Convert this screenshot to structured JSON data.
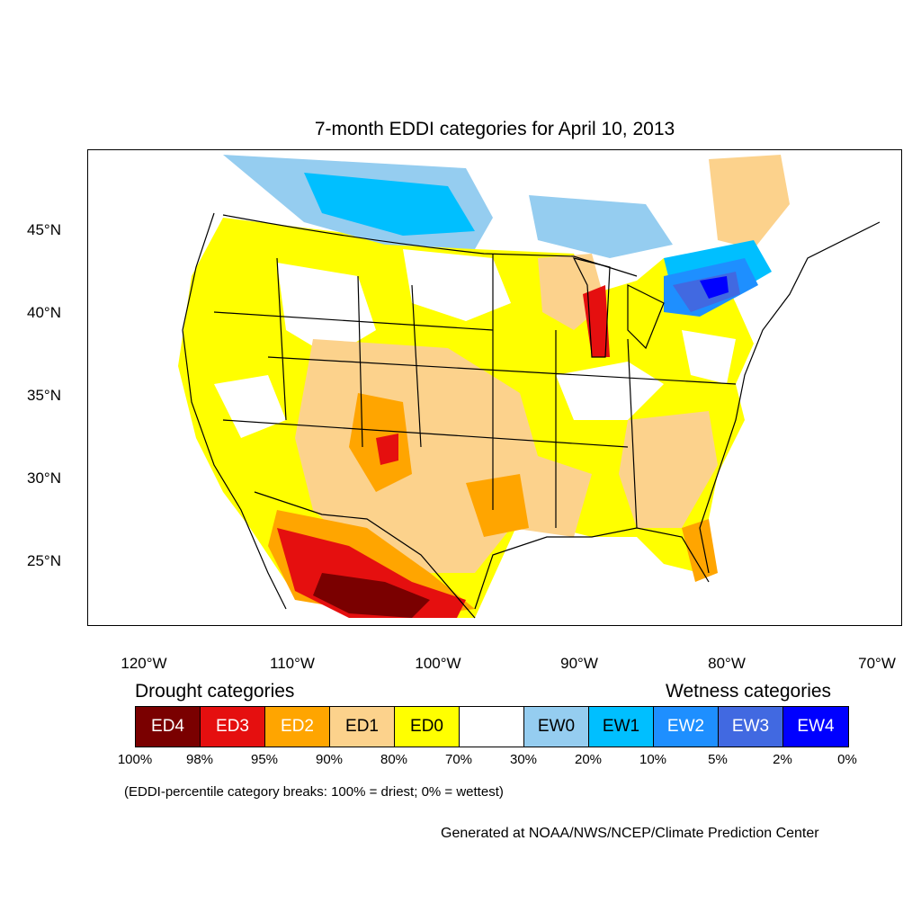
{
  "title": "7-month EDDI categories for April 10, 2013",
  "lat_labels": [
    "45°N",
    "40°N",
    "35°N",
    "30°N",
    "25°N"
  ],
  "lon_labels": [
    "120°W",
    "110°W",
    "100°W",
    "90°W",
    "80°W",
    "70°W"
  ],
  "legend": {
    "drought_heading": "Drought categories",
    "wetness_heading": "Wetness categories",
    "categories": [
      {
        "label": "ED4",
        "color": "#7a0000",
        "text_color": "#ffffff"
      },
      {
        "label": "ED3",
        "color": "#e50f0f",
        "text_color": "#ffffff"
      },
      {
        "label": "ED2",
        "color": "#ffa500",
        "text_color": "#ffffff"
      },
      {
        "label": "ED1",
        "color": "#fcd28c",
        "text_color": "#000000"
      },
      {
        "label": "ED0",
        "color": "#ffff00",
        "text_color": "#000000"
      },
      {
        "label": "",
        "color": "#ffffff",
        "text_color": "#000000"
      },
      {
        "label": "EW0",
        "color": "#95cdf0",
        "text_color": "#000000"
      },
      {
        "label": "EW1",
        "color": "#00bfff",
        "text_color": "#000000"
      },
      {
        "label": "EW2",
        "color": "#1e8fff",
        "text_color": "#ffffff"
      },
      {
        "label": "EW3",
        "color": "#4169e1",
        "text_color": "#ffffff"
      },
      {
        "label": "EW4",
        "color": "#0000ff",
        "text_color": "#ffffff"
      }
    ],
    "percentiles": [
      "100%",
      "98%",
      "95%",
      "90%",
      "80%",
      "70%",
      "30%",
      "20%",
      "10%",
      "5%",
      "2%",
      "0%"
    ]
  },
  "note": "(EDDI-percentile category breaks: 100% = driest; 0% = wettest)",
  "credit": "Generated at NOAA/NWS/NCEP/Climate Prediction Center"
}
